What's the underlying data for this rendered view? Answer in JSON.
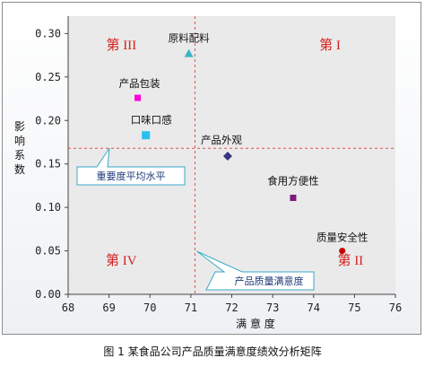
{
  "caption": "图 1   某食品公司产品质量满意度绩效分析矩阵",
  "chart_data": {
    "type": "scatter",
    "xlabel": "满  意  度",
    "ylabel": "影响系数",
    "xlim": [
      68,
      76
    ],
    "ylim": [
      0.0,
      0.32
    ],
    "x_ticks": [
      68,
      69,
      70,
      71,
      72,
      73,
      74,
      75,
      76
    ],
    "x_tick_labels": [
      "68",
      "69",
      "70",
      "71",
      "72",
      "73",
      "74",
      "75",
      "76"
    ],
    "y_ticks": [
      0,
      0.05,
      0.1,
      0.15,
      0.2,
      0.25,
      0.3
    ],
    "y_tick_labels": [
      "0.00",
      "0.05",
      "0.10",
      "0.15",
      "0.20",
      "0.25",
      "0.30"
    ],
    "grid": false,
    "ref_lines": {
      "x": 71.1,
      "y": 0.168
    },
    "quadrants": [
      {
        "id": "I",
        "label": "第 I",
        "x": 74.4,
        "y": 0.282
      },
      {
        "id": "II",
        "label": "第 II",
        "x": 74.9,
        "y": 0.034
      },
      {
        "id": "III",
        "label": "第 III",
        "x": 69.3,
        "y": 0.282
      },
      {
        "id": "IV",
        "label": "第 IV",
        "x": 69.3,
        "y": 0.034
      }
    ],
    "points": [
      {
        "label": "原料配料",
        "x": 70.95,
        "y": 0.277,
        "marker": "triangle",
        "color": "#38b6c8"
      },
      {
        "label": "产品包装",
        "x": 69.7,
        "y": 0.226,
        "marker": "square",
        "color": "#ff00dd"
      },
      {
        "label": "口味口感",
        "x": 69.9,
        "y": 0.183,
        "marker": "square",
        "color": "#28c0f0"
      },
      {
        "label": "产品外观",
        "x": 71.9,
        "y": 0.159,
        "marker": "diamond",
        "color": "#353580"
      },
      {
        "label": "食用方便性",
        "x": 73.5,
        "y": 0.111,
        "marker": "square",
        "color": "#7a1a7a"
      },
      {
        "label": "质量安全性",
        "x": 74.7,
        "y": 0.05,
        "marker": "circle",
        "color": "#c80000"
      }
    ],
    "annotations": [
      {
        "text": "重要度平均水平",
        "target": "horizontal reference line"
      },
      {
        "text": "产品质量满意度",
        "target": "vertical reference line"
      }
    ]
  }
}
